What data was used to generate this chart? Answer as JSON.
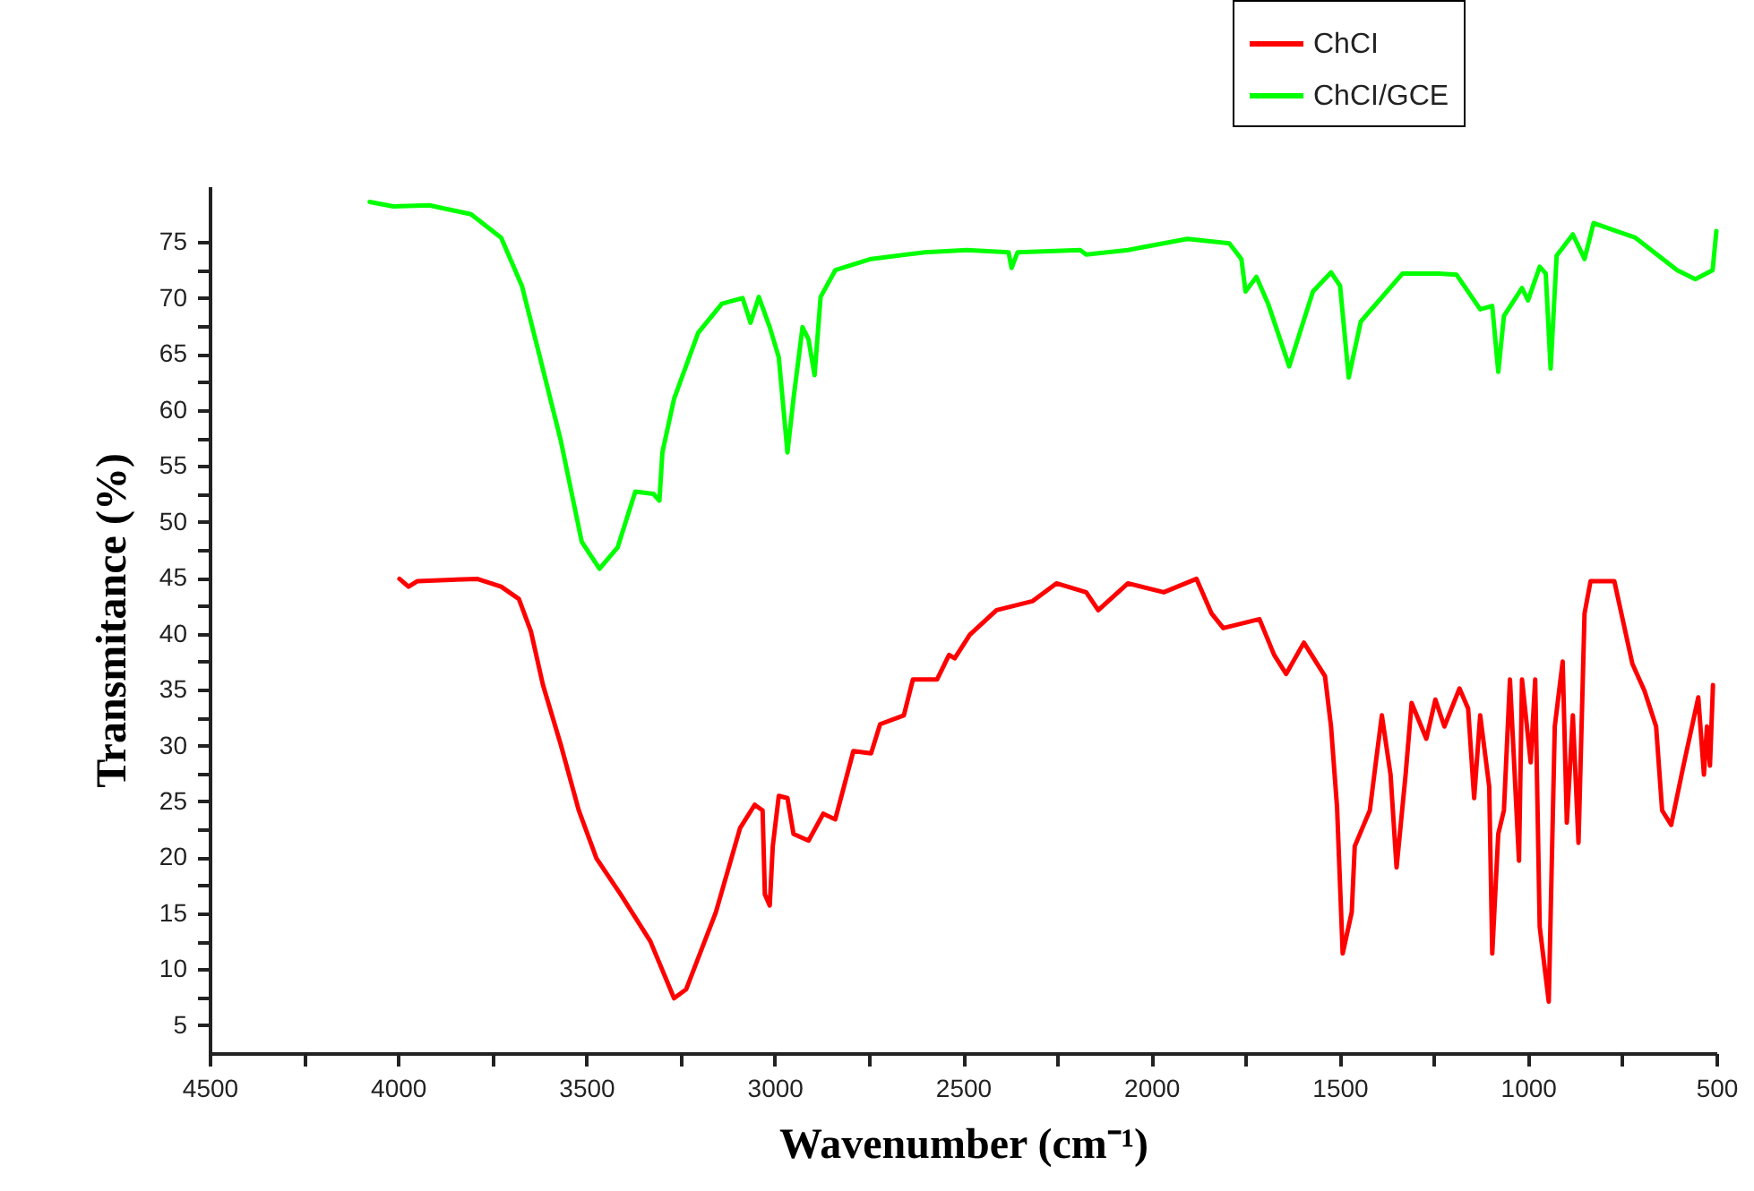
{
  "chart_data": {
    "type": "line",
    "xlabel": "Wavenumber (cm⁻¹)",
    "ylabel": "Transmitance (%)",
    "xlim": [
      4500,
      500
    ],
    "ylim": [
      2.5,
      80
    ],
    "xticks": [
      4500,
      {
        "value": 4250,
        "label": null
      },
      4000,
      {
        "value": 3750,
        "label": null
      },
      3500,
      {
        "value": 3250,
        "label": null
      },
      3000,
      {
        "value": 2750,
        "label": null
      },
      2500,
      {
        "value": 2250,
        "label": null
      },
      2000,
      {
        "value": 1750,
        "label": null
      },
      1500,
      {
        "value": 1250,
        "label": null
      },
      1000,
      {
        "value": 750,
        "label": null
      },
      500
    ],
    "yticks": [
      5,
      {
        "value": 7.5,
        "label": null
      },
      10,
      {
        "value": 12.5,
        "label": null
      },
      15,
      {
        "value": 17.5,
        "label": null
      },
      20,
      {
        "value": 22.5,
        "label": null
      },
      25,
      {
        "value": 27.5,
        "label": null
      },
      30,
      {
        "value": 32.5,
        "label": null
      },
      35,
      {
        "value": 37.5,
        "label": null
      },
      40,
      {
        "value": 42.5,
        "label": null
      },
      45,
      {
        "value": 47.5,
        "label": null
      },
      50,
      {
        "value": 52.5,
        "label": null
      },
      55,
      {
        "value": 57.5,
        "label": null
      },
      60,
      {
        "value": 62.5,
        "label": null
      },
      65,
      {
        "value": 67.5,
        "label": null
      },
      70,
      {
        "value": 72.5,
        "label": null
      },
      75
    ],
    "grid": false,
    "legend": "top right",
    "line_style": "solid",
    "marker": "none",
    "series": [
      {
        "name": "ChCI",
        "color": "#ff0000",
        "x": [
          3996,
          3972,
          3948,
          3790,
          3726,
          3679,
          3647,
          3615,
          3568,
          3520,
          3473,
          3409,
          3330,
          3267,
          3235,
          3156,
          3092,
          3053,
          3032,
          3026,
          3013,
          3005,
          2989,
          2966,
          2950,
          2910,
          2871,
          2839,
          2791,
          2744,
          2720,
          2657,
          2633,
          2569,
          2537,
          2522,
          2482,
          2411,
          2316,
          2252,
          2173,
          2141,
          2062,
          1967,
          1880,
          1840,
          1809,
          1713,
          1674,
          1642,
          1595,
          1539,
          1523,
          1507,
          1492,
          1468,
          1460,
          1420,
          1404,
          1388,
          1365,
          1349,
          1325,
          1309,
          1270,
          1246,
          1222,
          1182,
          1159,
          1143,
          1127,
          1103,
          1095,
          1079,
          1064,
          1048,
          1024,
          1016,
          993,
          981,
          969,
          945,
          929,
          908,
          897,
          881,
          866,
          850,
          834,
          771,
          723,
          691,
          660,
          644,
          620,
          588,
          548,
          533,
          525,
          517,
          509
        ],
        "values": [
          44.9,
          44.2,
          44.7,
          44.9,
          44.2,
          43.1,
          40.2,
          35.4,
          30.1,
          24.2,
          19.9,
          16.7,
          12.5,
          7.4,
          8.2,
          15.1,
          22.6,
          24.7,
          24.2,
          16.7,
          15.7,
          21.0,
          25.5,
          25.3,
          22.1,
          21.5,
          23.9,
          23.4,
          29.5,
          29.3,
          31.9,
          32.7,
          35.9,
          35.9,
          38.1,
          37.8,
          39.9,
          42.1,
          42.9,
          44.5,
          43.7,
          42.1,
          44.5,
          43.7,
          44.9,
          41.8,
          40.5,
          41.3,
          38.1,
          36.4,
          39.2,
          36.2,
          31.7,
          24.5,
          11.4,
          15.1,
          21.0,
          24.2,
          28.5,
          32.7,
          27.4,
          19.1,
          27.4,
          33.8,
          30.6,
          34.1,
          31.7,
          35.1,
          33.3,
          25.3,
          32.7,
          26.3,
          11.4,
          22.1,
          24.2,
          35.9,
          19.7,
          35.9,
          28.5,
          35.9,
          13.8,
          7.1,
          31.7,
          37.5,
          23.1,
          32.7,
          21.3,
          41.8,
          44.7,
          44.7,
          37.3,
          34.9,
          31.7,
          24.2,
          22.9,
          28.1,
          34.3,
          27.4,
          31.7,
          28.2,
          35.4
        ]
      },
      {
        "name": "ChCI/GCE",
        "color": "#00ff00",
        "x": [
          4075,
          4012,
          3917,
          3806,
          3726,
          3671,
          3623,
          3568,
          3512,
          3465,
          3417,
          3370,
          3322,
          3306,
          3298,
          3267,
          3203,
          3140,
          3085,
          3064,
          3042,
          3013,
          2989,
          2966,
          2950,
          2926,
          2910,
          2894,
          2878,
          2839,
          2744,
          2601,
          2490,
          2379,
          2371,
          2355,
          2189,
          2173,
          2062,
          1904,
          1793,
          1761,
          1750,
          1721,
          1690,
          1634,
          1571,
          1523,
          1499,
          1476,
          1444,
          1333,
          1238,
          1190,
          1127,
          1095,
          1079,
          1064,
          1016,
          1000,
          969,
          953,
          940,
          924,
          881,
          850,
          826,
          715,
          604,
          556,
          510,
          500
        ],
        "values": [
          78.6,
          78.2,
          78.3,
          77.5,
          75.4,
          71.1,
          64.7,
          57.3,
          48.2,
          45.8,
          47.7,
          52.7,
          52.5,
          51.9,
          56.2,
          61.0,
          66.9,
          69.5,
          70.0,
          67.8,
          70.1,
          67.4,
          64.7,
          56.2,
          61.0,
          67.4,
          66.3,
          63.1,
          70.1,
          72.5,
          73.5,
          74.1,
          74.3,
          74.1,
          72.7,
          74.1,
          74.3,
          73.9,
          74.3,
          75.3,
          74.9,
          73.5,
          70.6,
          71.9,
          69.5,
          63.9,
          70.6,
          72.3,
          71.1,
          62.9,
          67.9,
          72.2,
          72.2,
          72.1,
          69.0,
          69.3,
          63.4,
          68.4,
          70.9,
          69.8,
          72.8,
          72.2,
          63.7,
          73.8,
          75.7,
          73.5,
          76.7,
          75.4,
          72.5,
          71.7,
          72.5,
          76.0
        ]
      }
    ]
  }
}
